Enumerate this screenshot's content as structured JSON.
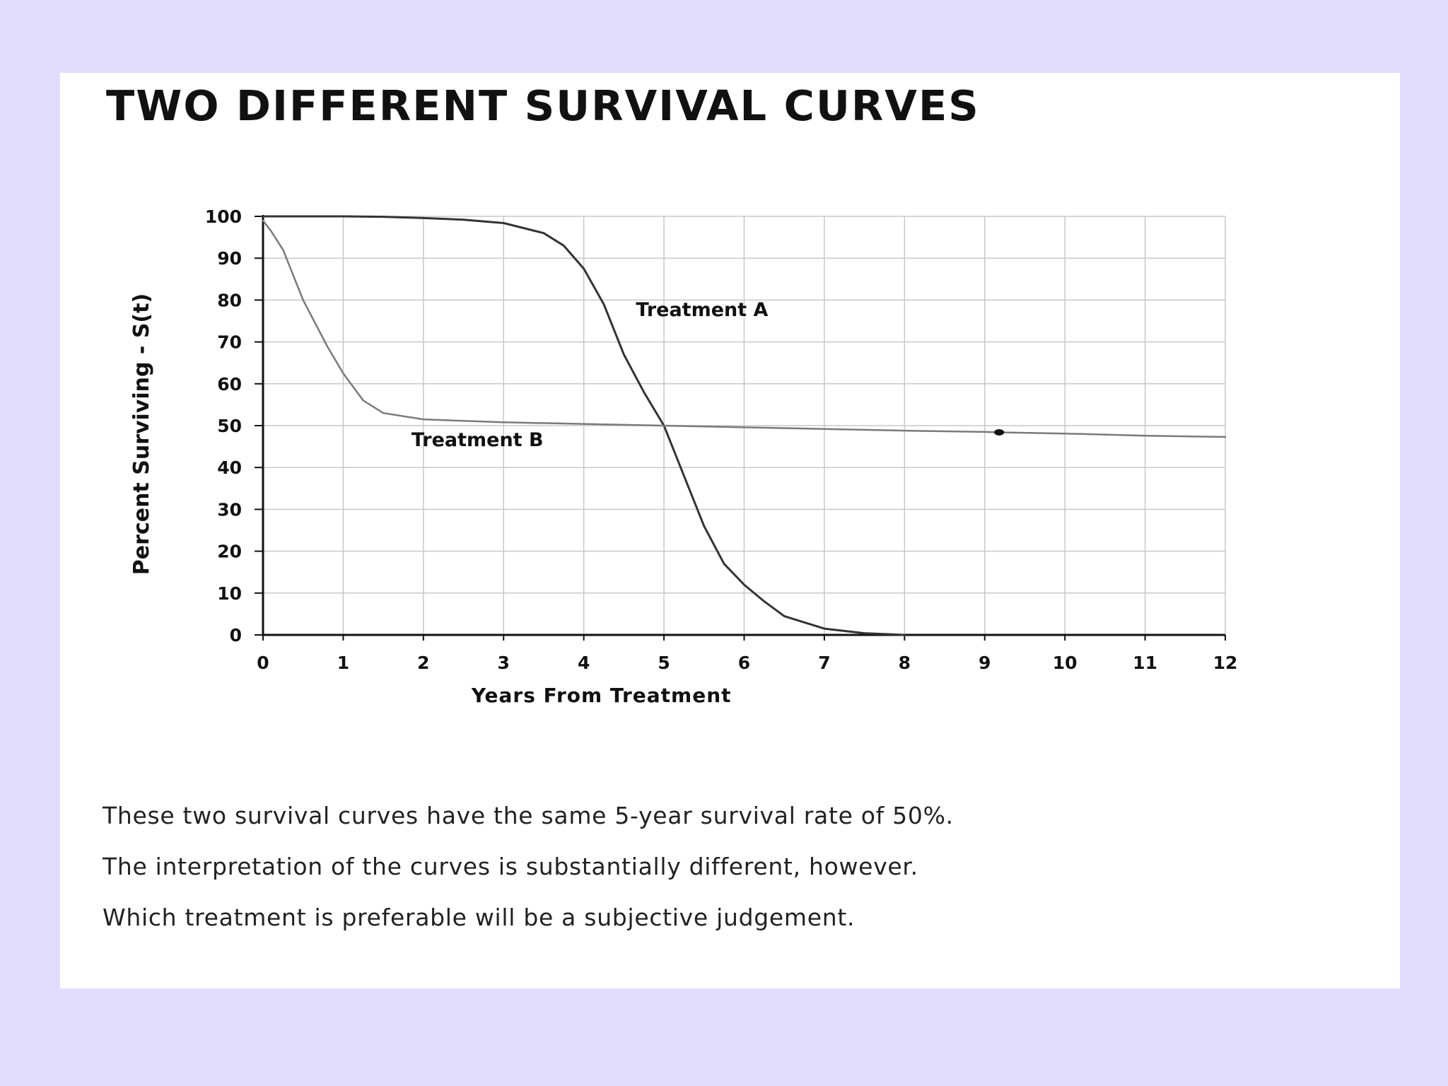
{
  "slide": {
    "title": "TWO DIFFERENT SURVIVAL CURVES",
    "notes": [
      "These two survival curves have the same 5-year survival rate of 50%.",
      "The interpretation of the curves is substantially different, however.",
      "Which treatment is preferable will be a subjective judgement."
    ]
  },
  "colors": {
    "background": "#e1dcfc",
    "panel": "#ffffff",
    "curve_a": "#333333",
    "curve_b": "#7a7a7a",
    "grid": "#c8c8c8",
    "axis": "#111111"
  },
  "chart_data": {
    "type": "line",
    "xlabel": "Years From Treatment",
    "ylabel": "Percent Surviving  -  S(t)",
    "xlim": [
      0,
      12
    ],
    "ylim": [
      0,
      100
    ],
    "xticks": [
      0,
      1,
      2,
      3,
      4,
      5,
      6,
      7,
      8,
      9,
      10,
      11,
      12
    ],
    "yticks": [
      0,
      10,
      20,
      30,
      40,
      50,
      60,
      70,
      80,
      90,
      100
    ],
    "grid": true,
    "series": [
      {
        "name": "Treatment A",
        "x": [
          0,
          1,
          1.5,
          2,
          2.5,
          3,
          3.5,
          3.75,
          4,
          4.25,
          4.5,
          4.75,
          5,
          5.25,
          5.5,
          5.75,
          6,
          6.25,
          6.5,
          7,
          7.5,
          8
        ],
        "y": [
          100,
          100,
          99.9,
          99.6,
          99.2,
          98.4,
          96,
          93,
          87.5,
          79,
          67,
          58,
          50,
          38,
          26,
          17,
          12,
          8,
          4.5,
          1.5,
          0.4,
          0
        ]
      },
      {
        "name": "Treatment B",
        "x": [
          0,
          0.1,
          0.25,
          0.5,
          0.8,
          1,
          1.25,
          1.5,
          2,
          3,
          4,
          5,
          6,
          7,
          8,
          9,
          9.2,
          10,
          11,
          12
        ],
        "y": [
          99,
          96.5,
          92,
          80,
          69,
          62.5,
          56,
          53,
          51.5,
          50.8,
          50.4,
          50,
          49.6,
          49.2,
          48.8,
          48.5,
          48.4,
          48.1,
          47.6,
          47.3
        ]
      }
    ],
    "annotations": [
      {
        "text": "Treatment A",
        "x": 4.65,
        "y": 76.2
      },
      {
        "text": "Treatment B",
        "x": 1.85,
        "y": 45.1
      }
    ],
    "markers": [
      {
        "x": 9.18,
        "y": 48.4
      }
    ]
  }
}
